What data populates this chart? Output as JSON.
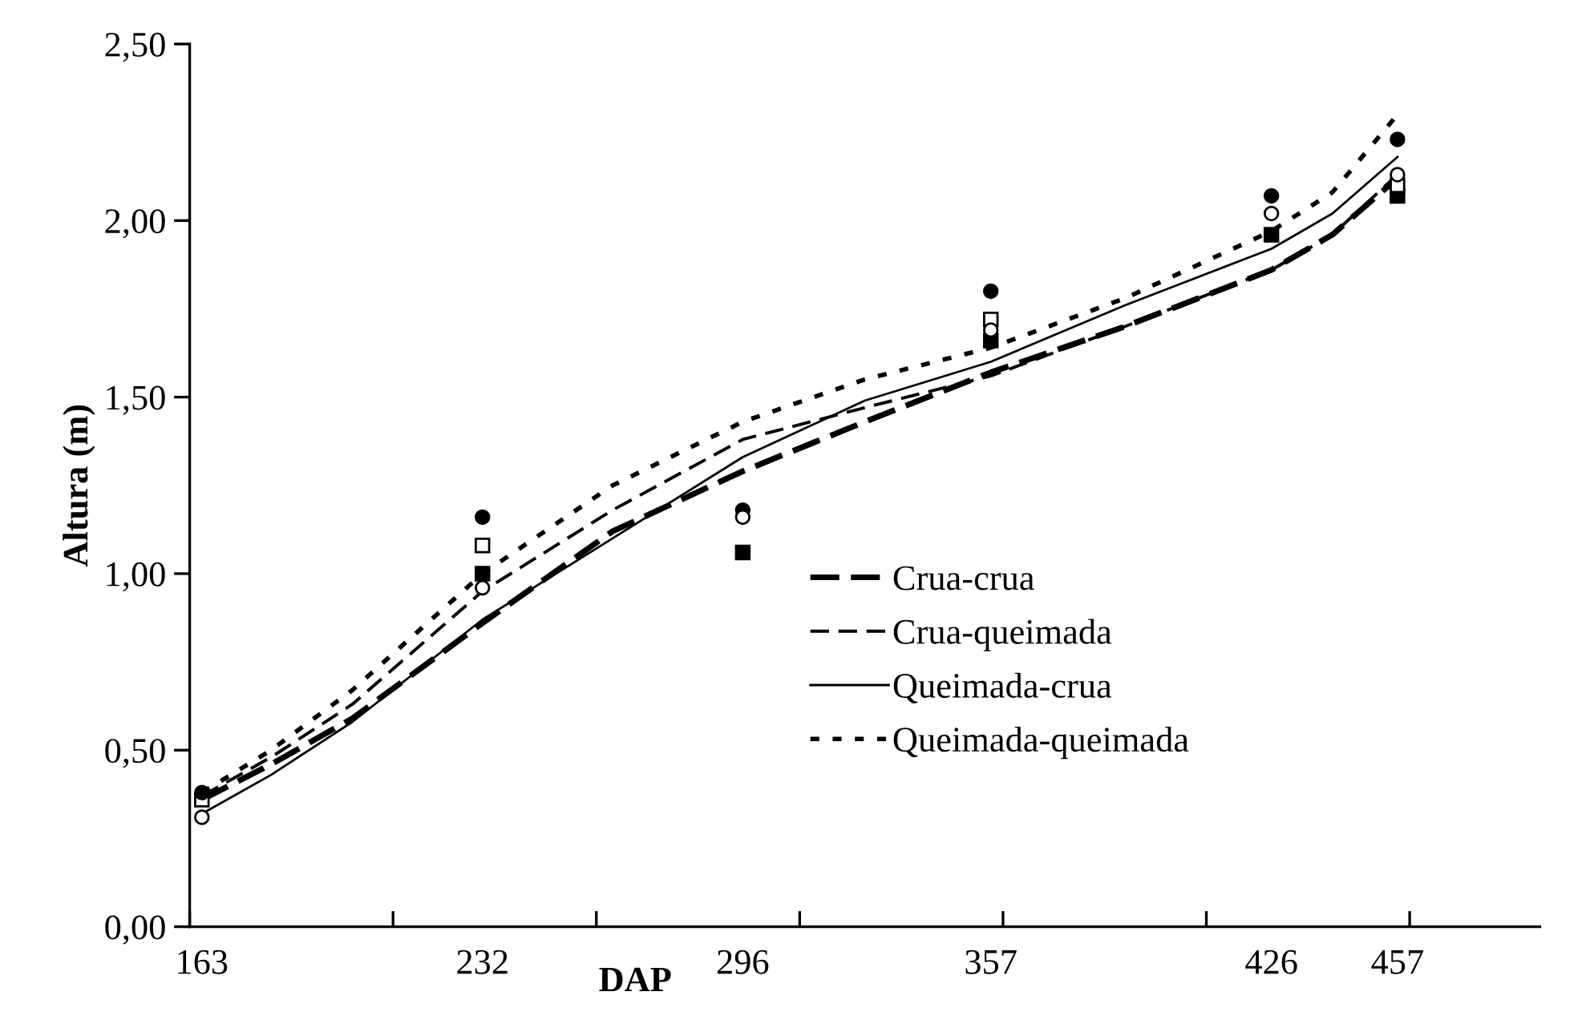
{
  "chart_data": {
    "type": "line",
    "xlabel": "DAP",
    "ylabel": "Altura (m)",
    "xlim": [
      160,
      492
    ],
    "ylim": [
      0,
      2.5
    ],
    "xticks": [
      {
        "value": 160,
        "label": null
      },
      {
        "value": 210,
        "label": null
      },
      {
        "value": 260,
        "label": null
      },
      {
        "value": 310,
        "label": null
      },
      {
        "value": 360,
        "label": null
      },
      {
        "value": 410,
        "label": null
      },
      {
        "value": 460,
        "label": null
      },
      {
        "value": 163,
        "label": "163"
      },
      {
        "value": 232,
        "label": "232"
      },
      {
        "value": 296,
        "label": "296"
      },
      {
        "value": 357,
        "label": "357"
      },
      {
        "value": 426,
        "label": "426"
      },
      {
        "value": 457,
        "label": "457"
      }
    ],
    "yticks": [
      {
        "value": 0,
        "label": "0,00"
      },
      {
        "value": 0.5,
        "label": "0,50"
      },
      {
        "value": 1.0,
        "label": "1,00"
      },
      {
        "value": 1.5,
        "label": "1,50"
      },
      {
        "value": 2.0,
        "label": "2,00"
      },
      {
        "value": 2.5,
        "label": "2,50"
      }
    ],
    "grid": false,
    "legend": "center",
    "marker": "none",
    "x": [
      163,
      180,
      200,
      232,
      264,
      296,
      326,
      357,
      390,
      426,
      441,
      457
    ],
    "series": [
      {
        "name": "Crua-crua",
        "color": "#000000",
        "line_style": "dashed",
        "values": [
          0.36,
          0.46,
          0.59,
          0.86,
          1.12,
          1.29,
          1.43,
          1.57,
          1.7,
          1.86,
          1.96,
          2.12
        ]
      },
      {
        "name": "Crua-queimada",
        "color": "#000000",
        "line_style": "dashed",
        "values": [
          0.37,
          0.48,
          0.63,
          0.95,
          1.18,
          1.38,
          1.47,
          1.56,
          1.7,
          1.86,
          1.96,
          2.13
        ]
      },
      {
        "name": "Queimada-crua",
        "color": "#000000",
        "line_style": "solid",
        "values": [
          0.32,
          0.43,
          0.58,
          0.87,
          1.1,
          1.33,
          1.49,
          1.6,
          1.76,
          1.92,
          2.02,
          2.18
        ]
      },
      {
        "name": "Queimada-queimada",
        "color": "#000000",
        "line_style": "dotted",
        "values": [
          0.38,
          0.5,
          0.67,
          1.0,
          1.25,
          1.43,
          1.55,
          1.64,
          1.78,
          1.97,
          2.08,
          2.3
        ]
      },
      {
        "type": "scatter",
        "marker": "square",
        "color": "#000000",
        "x": [
          232,
          296,
          357,
          426,
          457
        ],
        "values": [
          1.0,
          1.06,
          1.66,
          1.96,
          2.07
        ]
      },
      {
        "type": "scatter",
        "marker": "square",
        "color": "#ffffff",
        "x": [
          163,
          232,
          296,
          357,
          426,
          457
        ],
        "values": [
          0.36,
          1.08,
          null,
          1.72,
          null,
          2.1
        ]
      },
      {
        "type": "scatter",
        "marker": "circle",
        "color": "#000000",
        "x": [
          163,
          232,
          296,
          357,
          426,
          457
        ],
        "values": [
          0.38,
          1.16,
          1.18,
          1.8,
          2.07,
          2.23
        ]
      },
      {
        "type": "scatter",
        "marker": "circle",
        "color": "#ffffff",
        "x": [
          163,
          232,
          296,
          357,
          426,
          457
        ],
        "values": [
          0.31,
          0.96,
          1.16,
          1.69,
          2.02,
          2.13
        ]
      }
    ]
  }
}
